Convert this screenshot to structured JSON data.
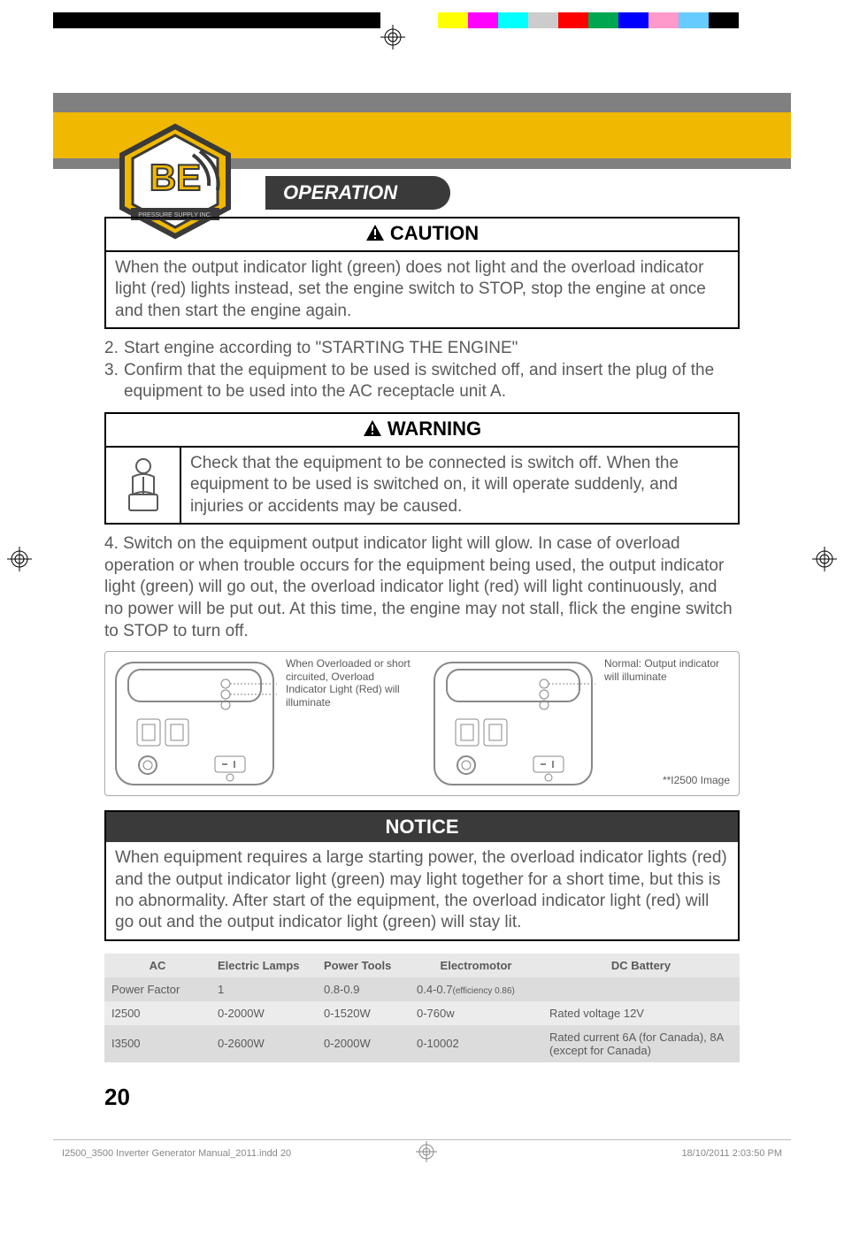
{
  "print_marks": {
    "colors": [
      "#ffff00",
      "#ff00ff",
      "#00ffff",
      "#cccccc",
      "#ff0000",
      "#00a650",
      "#0000ff",
      "#ff99cc",
      "#66ccff",
      "#000000"
    ]
  },
  "header": {
    "title": "OPERATION",
    "logo_letters": "BE",
    "logo_sub": "PRESSURE SUPPLY INC.",
    "yellow": "#f0b800",
    "gray": "#808080",
    "pill_bg": "#3a3a3a"
  },
  "caution": {
    "label": "CAUTION",
    "text": "When the output indicator light (green) does not light and the overload indicator light (red) lights instead, set the engine switch to STOP, stop the engine at once and then start the engine again."
  },
  "list23": {
    "item2_num": "2.",
    "item2": "Start engine according to \"STARTING THE ENGINE\"",
    "item3_num": "3.",
    "item3": "Confirm that the equipment to be used is switched off, and insert the plug of the equipment to be used into the AC receptacle unit A."
  },
  "warning": {
    "label": "WARNING",
    "text": "Check that the equipment to be connected is switch off. When the equipment to be used is switched on, it will operate suddenly, and injuries or accidents may be caused."
  },
  "para4": {
    "num": "4.",
    "text": "Switch on the equipment output indicator light will glow. In case of overload operation or when trouble occurs for the equipment being used, the output indicator light (green) will go out, the overload indicator light (red) will light continuously, and no power will be put out. At this time, the engine may not stall, flick the engine switch to STOP to turn off."
  },
  "panels": {
    "left_label": "When Overloaded or short circuited, Overload Indicator Light (Red) will illuminate",
    "right_label": "Normal: Output indicator will illuminate",
    "footnote": "**I2500 Image"
  },
  "notice": {
    "label": "NOTICE",
    "header_bg": "#3a3a3a",
    "text": "When equipment requires a large starting power, the overload indicator lights (red) and the output indicator light (green) may light together for a short time, but this is no abnormality. After start of the equipment, the overload indicator light (red) will go out and the output indicator light (green) will stay lit."
  },
  "table": {
    "head": {
      "c0": "AC",
      "c1": "Electric Lamps",
      "c2": "Power Tools",
      "c3": "Electromotor",
      "c4": "DC Battery"
    },
    "rows": [
      {
        "c0": "Power Factor",
        "c1": "1",
        "c2": "0.8-0.9",
        "c3": "0.4-0.7",
        "c3_eff": "(efficiency 0.86)",
        "c4": ""
      },
      {
        "c0": "I2500",
        "c1": "0-2000W",
        "c2": "0-1520W",
        "c3": "0-760w",
        "c3_eff": "",
        "c4": "Rated voltage 12V"
      },
      {
        "c0": "I3500",
        "c1": "0-2600W",
        "c2": "0-2000W",
        "c3": "0-10002",
        "c3_eff": "",
        "c4": "Rated current 6A (for Canada), 8A (except for Canada)"
      }
    ]
  },
  "page_number": "20",
  "footer": {
    "left": "I2500_3500 Inverter Generator Manual_2011.indd   20",
    "right": "18/10/2011   2:03:50 PM"
  }
}
